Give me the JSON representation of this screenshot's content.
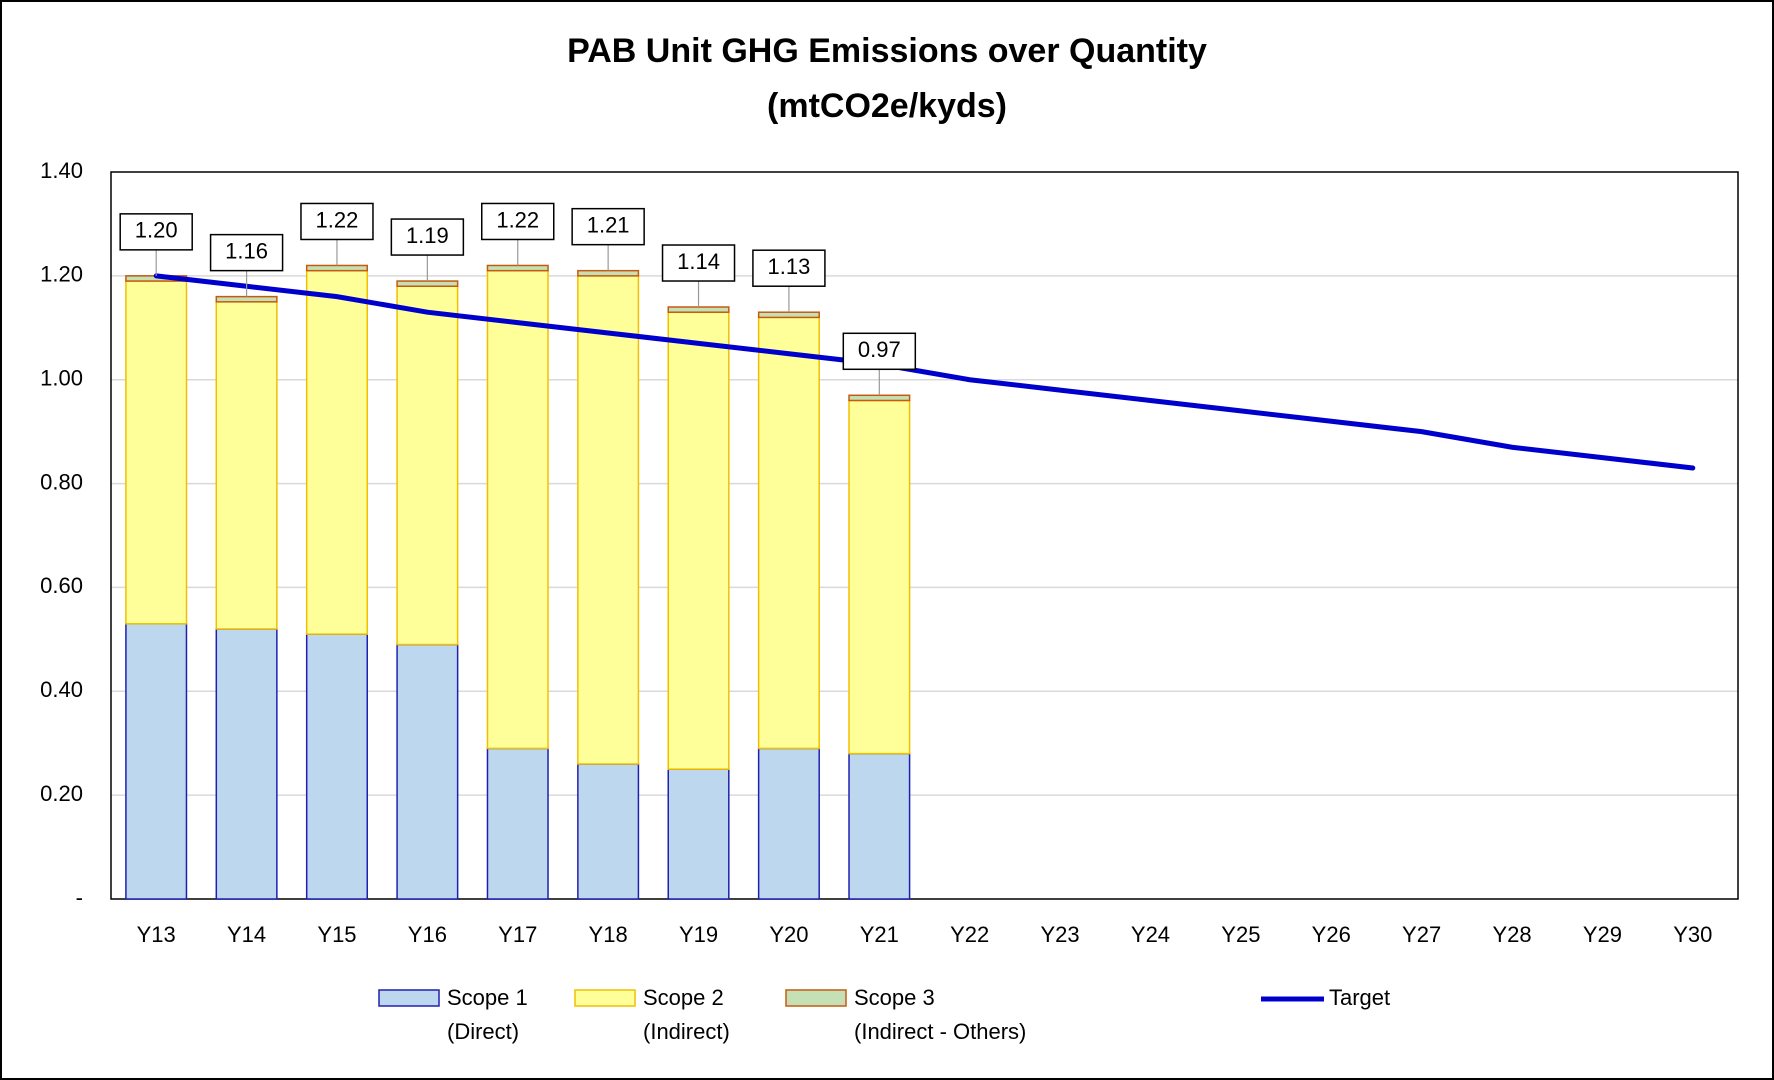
{
  "chart_data": {
    "type": "stacked_bar_line",
    "title": "PAB Unit GHG Emissions over Quantity",
    "subtitle": "(mtCO2e/kyds)",
    "categories": [
      "Y13",
      "Y14",
      "Y15",
      "Y16",
      "Y17",
      "Y18",
      "Y19",
      "Y20",
      "Y21",
      "Y22",
      "Y23",
      "Y24",
      "Y25",
      "Y26",
      "Y27",
      "Y28",
      "Y29",
      "Y30"
    ],
    "series": [
      {
        "name": "Scope 1",
        "description": "(Direct)",
        "color": "#bdd7ee",
        "edge": "#2020b0",
        "kind": "bar",
        "values": [
          0.53,
          0.52,
          0.51,
          0.49,
          0.29,
          0.26,
          0.25,
          0.29,
          0.28,
          null,
          null,
          null,
          null,
          null,
          null,
          null,
          null,
          null
        ]
      },
      {
        "name": "Scope 2",
        "description": "(Indirect)",
        "color": "#ffff99",
        "edge": "#f0c000",
        "kind": "bar",
        "values": [
          0.66,
          0.63,
          0.7,
          0.69,
          0.92,
          0.94,
          0.88,
          0.83,
          0.68,
          null,
          null,
          null,
          null,
          null,
          null,
          null,
          null,
          null
        ]
      },
      {
        "name": "Scope 3",
        "description": "(Indirect - Others)",
        "color": "#c5e0b4",
        "edge": "#c55a11",
        "kind": "bar",
        "values": [
          0.01,
          0.01,
          0.01,
          0.01,
          0.01,
          0.01,
          0.01,
          0.01,
          0.01,
          null,
          null,
          null,
          null,
          null,
          null,
          null,
          null,
          null
        ]
      },
      {
        "name": "Target",
        "color": "#0000cc",
        "kind": "line",
        "values": [
          1.2,
          1.18,
          1.16,
          1.13,
          1.11,
          1.09,
          1.07,
          1.05,
          1.03,
          1.0,
          0.98,
          0.96,
          0.94,
          0.92,
          0.9,
          0.87,
          0.85,
          0.83
        ]
      }
    ],
    "total_labels": [
      "1.20",
      "1.16",
      "1.22",
      "1.19",
      "1.22",
      "1.21",
      "1.14",
      "1.13",
      "0.97",
      null,
      null,
      null,
      null,
      null,
      null,
      null,
      null,
      null
    ],
    "ylim": [
      0,
      1.4
    ],
    "yticks": [
      {
        "value": 0,
        "label": "-"
      },
      {
        "value": 0.2,
        "label": "0.20"
      },
      {
        "value": 0.4,
        "label": "0.40"
      },
      {
        "value": 0.6,
        "label": "0.60"
      },
      {
        "value": 0.8,
        "label": "0.80"
      },
      {
        "value": 1.0,
        "label": "1.00"
      },
      {
        "value": 1.2,
        "label": "1.20"
      },
      {
        "value": 1.4,
        "label": "1.40"
      }
    ],
    "grid": true
  }
}
